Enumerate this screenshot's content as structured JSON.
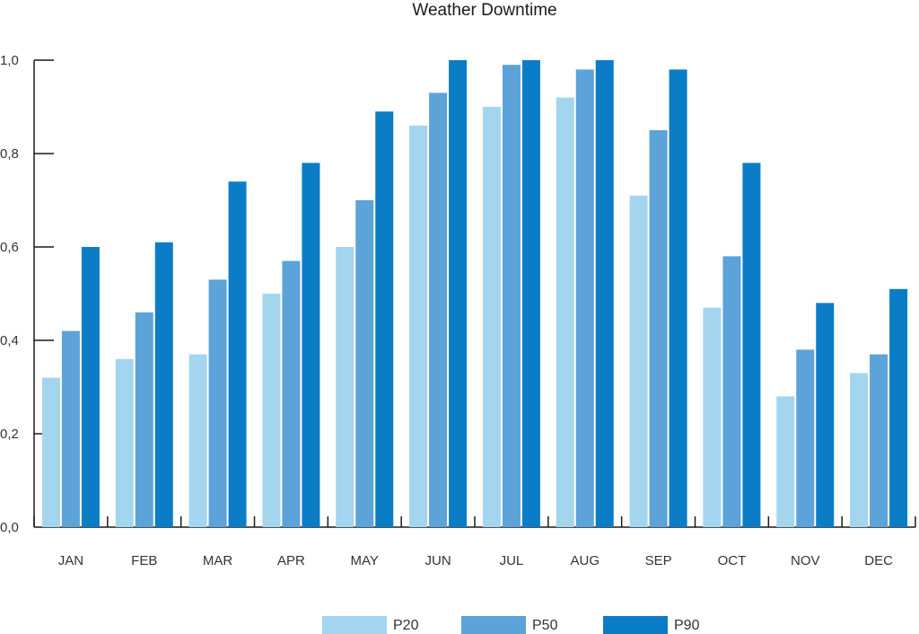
{
  "chart_data": {
    "type": "bar",
    "title": "Weather Downtime",
    "xlabel": "",
    "ylabel": "",
    "ylim": [
      0,
      1.0
    ],
    "yticks": [
      "0,0",
      "0,2",
      "0,4",
      "0,6",
      "0,8",
      "1,0"
    ],
    "ytick_values": [
      0,
      0.2,
      0.4,
      0.6,
      0.8,
      1.0
    ],
    "grid": false,
    "legend_position": "bottom-center",
    "categories": [
      "JAN",
      "FEB",
      "MAR",
      "APR",
      "MAY",
      "JUN",
      "JUL",
      "AUG",
      "SEP",
      "OCT",
      "NOV",
      "DEC"
    ],
    "series": [
      {
        "name": "P20",
        "color": "#a3d5ef",
        "values": [
          0.32,
          0.36,
          0.37,
          0.5,
          0.6,
          0.86,
          0.9,
          0.92,
          0.71,
          0.47,
          0.28,
          0.33
        ]
      },
      {
        "name": "P50",
        "color": "#5ba3d8",
        "values": [
          0.42,
          0.46,
          0.53,
          0.57,
          0.7,
          0.93,
          0.99,
          0.98,
          0.85,
          0.58,
          0.38,
          0.37
        ]
      },
      {
        "name": "P90",
        "color": "#0b7dc7",
        "values": [
          0.6,
          0.61,
          0.74,
          0.78,
          0.89,
          1.0,
          1.0,
          1.0,
          0.98,
          0.78,
          0.48,
          0.51
        ]
      }
    ]
  }
}
